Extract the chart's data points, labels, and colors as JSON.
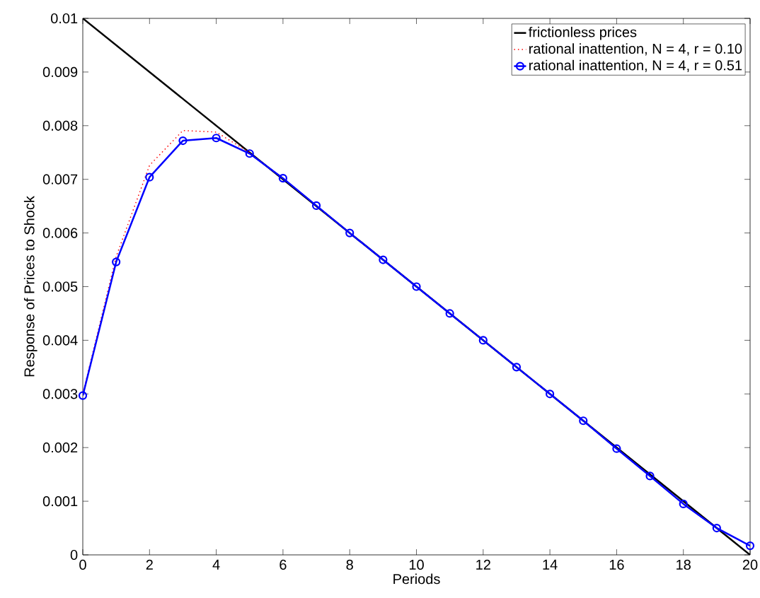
{
  "chart_data": {
    "type": "line",
    "xlabel": "Periods",
    "ylabel": "Response of Prices to Shock",
    "xlim": [
      0,
      20
    ],
    "ylim": [
      0,
      0.01
    ],
    "xticks": [
      0,
      2,
      4,
      6,
      8,
      10,
      12,
      14,
      16,
      18,
      20
    ],
    "yticks": [
      0,
      0.001,
      0.002,
      0.003,
      0.004,
      0.005,
      0.006,
      0.007,
      0.008,
      0.009,
      0.01
    ],
    "grid": false,
    "legend": "top right",
    "series": [
      {
        "name": "frictionless prices",
        "color": "#000000",
        "line_style": "solid",
        "marker": "none",
        "x": [
          0,
          20
        ],
        "values": [
          0.01,
          0
        ]
      },
      {
        "name": "rational inattention, N = 4, r = 0.10",
        "color": "#ff0000",
        "line_style": "dotted",
        "marker": "none",
        "x": [
          0,
          1,
          2,
          3,
          4,
          5
        ],
        "values": [
          0.003,
          0.00556,
          0.00726,
          0.00791,
          0.00788,
          0.0075
        ]
      },
      {
        "name": "rational inattention, N = 4, r = 0.51",
        "color": "#0000ff",
        "line_style": "solid",
        "marker": "circle",
        "x": [
          0,
          1,
          2,
          3,
          4,
          5,
          6,
          7,
          8,
          9,
          10,
          11,
          12,
          13,
          14,
          15,
          16,
          17,
          18,
          19,
          20
        ],
        "values": [
          0.00297,
          0.00546,
          0.00704,
          0.00772,
          0.00777,
          0.00748,
          0.00702,
          0.00651,
          0.006,
          0.0055,
          0.005,
          0.0045,
          0.004,
          0.0035,
          0.003,
          0.0025,
          0.00198,
          0.00147,
          0.00095,
          0.0005,
          0.00017
        ]
      }
    ]
  }
}
